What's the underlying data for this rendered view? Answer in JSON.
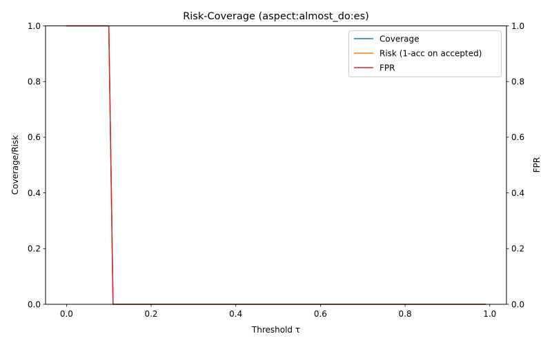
{
  "chart_data": {
    "type": "line",
    "title": "Risk-Coverage (aspect:almost_do:es)",
    "xlabel": "Threshold τ",
    "ylabel": "Coverage/Risk",
    "ylabel_right": "FPR",
    "xlim": [
      -0.0495,
      1.0395
    ],
    "ylim": [
      0,
      1
    ],
    "ylim_right": [
      0,
      1
    ],
    "xticks": [
      "0.0",
      "0.2",
      "0.4",
      "0.6",
      "0.8",
      "1.0"
    ],
    "xtick_values": [
      0,
      0.2,
      0.4,
      0.6,
      0.8,
      1.0
    ],
    "yticks": [
      "0.0",
      "0.2",
      "0.4",
      "0.6",
      "0.8",
      "1.0"
    ],
    "ytick_values": [
      0,
      0.2,
      0.4,
      0.6,
      0.8,
      1.0
    ],
    "grid": false,
    "legend_position": "top-right",
    "series": [
      {
        "name": "Coverage",
        "axis": "left",
        "color": "#1f77b4",
        "x": [
          0.0,
          0.1,
          0.11,
          0.99
        ],
        "y": [
          1.0,
          1.0,
          0.0,
          0.0
        ]
      },
      {
        "name": "Risk (1-acc on accepted)",
        "axis": "left",
        "color": "#ff7f0e",
        "x": [
          0.0,
          0.1,
          0.11,
          0.99
        ],
        "y": [
          1.0,
          1.0,
          0.0,
          0.0
        ]
      },
      {
        "name": "FPR",
        "axis": "right",
        "color": "#d62728",
        "x": [
          0.0,
          0.1,
          0.11,
          0.99
        ],
        "y": [
          1.0,
          1.0,
          0.0,
          0.0
        ]
      }
    ]
  }
}
